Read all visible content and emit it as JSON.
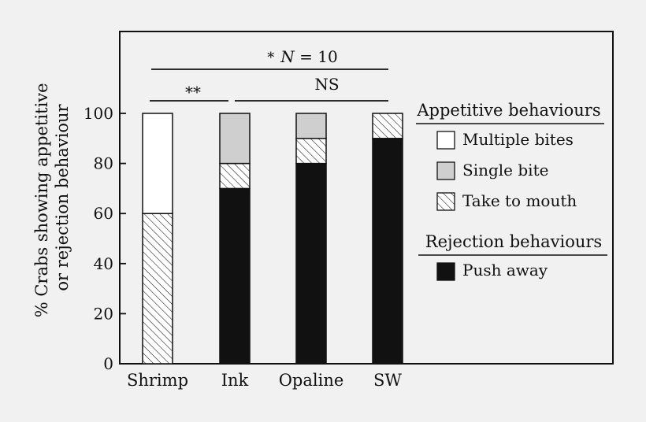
{
  "chart_data": {
    "type": "bar",
    "stacked": true,
    "categories": [
      "Shrimp",
      "Ink",
      "Opaline",
      "SW"
    ],
    "series": [
      {
        "name": "Push away",
        "values": [
          0,
          70,
          80,
          90
        ],
        "color": "#111111",
        "pattern": "solid"
      },
      {
        "name": "Take to mouth",
        "values": [
          60,
          10,
          10,
          10
        ],
        "color": "#ffffff",
        "pattern": "hatch"
      },
      {
        "name": "Single bite",
        "values": [
          0,
          20,
          10,
          0
        ],
        "color": "#cfcfcf",
        "pattern": "solid"
      },
      {
        "name": "Multiple bites",
        "values": [
          40,
          0,
          0,
          0
        ],
        "color": "#ffffff",
        "pattern": "solid"
      }
    ],
    "ylabel_line1": "% Crabs showing appetitive",
    "ylabel_line2": "or rejection behaviour",
    "xlabel": "",
    "ylim": [
      0,
      100
    ],
    "yticks": [
      "0",
      "20",
      "40",
      "60",
      "80",
      "100"
    ],
    "grid": false,
    "legend": {
      "placement": "right",
      "groups": [
        {
          "heading": "Appetitive behaviours",
          "items": [
            "Multiple bites",
            "Single bite",
            "Take to mouth"
          ]
        },
        {
          "heading": "Rejection behaviours",
          "items": [
            "Push away"
          ]
        }
      ]
    },
    "annotations": {
      "top_star": "*",
      "top_label_n": "N",
      "top_label_rest": " = 10",
      "left_bracket": "**",
      "right_bracket": "NS"
    }
  }
}
